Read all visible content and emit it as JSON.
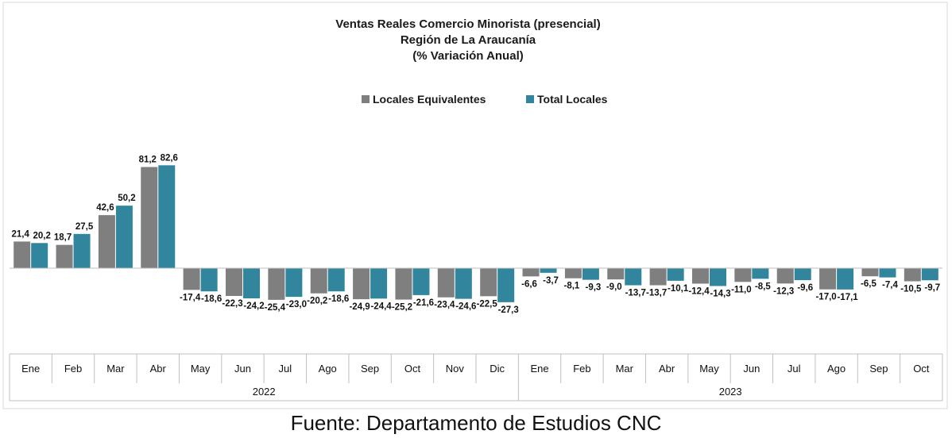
{
  "chart_data": {
    "type": "bar",
    "title_lines": [
      "Ventas Reales Comercio Minorista (presencial)",
      "Región de La Araucanía",
      "(% Variación Anual)"
    ],
    "categories": [
      "Ene",
      "Feb",
      "Mar",
      "Abr",
      "May",
      "Jun",
      "Jul",
      "Ago",
      "Sep",
      "Oct",
      "Nov",
      "Dic",
      "Ene",
      "Feb",
      "Mar",
      "Abr",
      "May",
      "Jun",
      "Jul",
      "Ago",
      "Sep",
      "Oct"
    ],
    "year_groups": [
      {
        "label": "2022",
        "count": 12
      },
      {
        "label": "2023",
        "count": 10
      }
    ],
    "series": [
      {
        "name": "Locales Equivalentes",
        "color": "#7f7f7f",
        "values": [
          21.4,
          18.7,
          42.6,
          81.2,
          -17.4,
          -22.3,
          -25.4,
          -20.2,
          -24.9,
          -25.2,
          -23.4,
          -22.5,
          -6.6,
          -8.1,
          -9.0,
          -13.7,
          -12.4,
          -11.0,
          -12.3,
          -17.0,
          -6.5,
          -10.5
        ],
        "labels": [
          "21,4",
          "18,7",
          "42,6",
          "81,2",
          "-17,4",
          "-22,3",
          "-25,4",
          "-20,2",
          "-24,9",
          "-25,2",
          "-23,4",
          "-22,5",
          "-6,6",
          "-8,1",
          "-9,0",
          "-13,7",
          "-12,4",
          "-11,0",
          "-12,3",
          "-17,0",
          "-6,5",
          "-10,5"
        ]
      },
      {
        "name": "Total Locales",
        "color": "#31859c",
        "values": [
          20.2,
          27.5,
          50.2,
          82.6,
          -18.6,
          -24.2,
          -23.0,
          -18.6,
          -24.4,
          -21.6,
          -24.6,
          -27.3,
          -3.7,
          -9.3,
          -13.7,
          -10.1,
          -14.3,
          -8.5,
          -9.6,
          -17.1,
          -7.4,
          -9.7
        ],
        "labels": [
          "20,2",
          "27,5",
          "50,2",
          "82,6",
          "-18,6",
          "-24,2",
          "-23,0",
          "-18,6",
          "-24,4",
          "-21,6",
          "-24,6",
          "-27,3",
          "-3,7",
          "-9,3",
          "-13,7",
          "-10,1",
          "-14,3",
          "-8,5",
          "-9,6",
          "-17,1",
          "-7,4",
          "-9,7"
        ]
      }
    ],
    "legend_position": "top-center",
    "grid": false
  },
  "source": "Fuente: Departamento de Estudios CNC"
}
